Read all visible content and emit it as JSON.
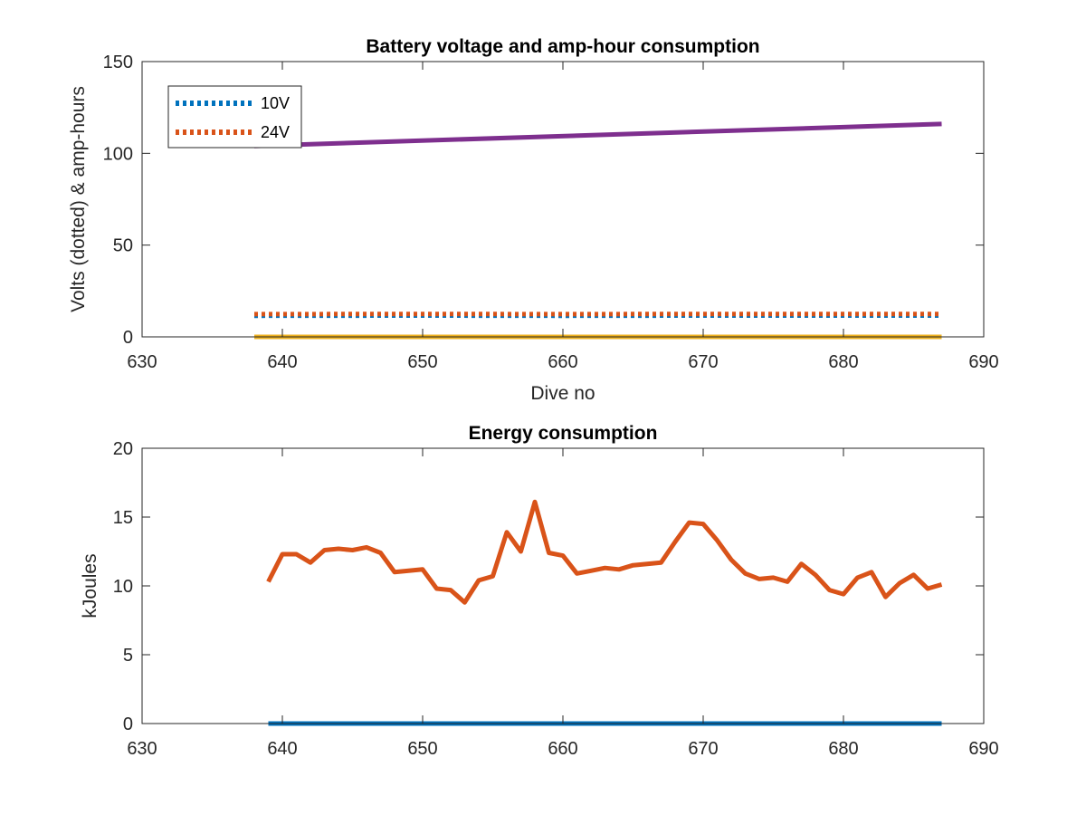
{
  "chart_data": [
    {
      "type": "line",
      "title": "Battery voltage and amp-hour consumption",
      "xlabel": "Dive no",
      "ylabel": "Volts (dotted) & amp-hours",
      "xlim": [
        630,
        690
      ],
      "ylim": [
        0,
        150
      ],
      "xticks": [
        630,
        640,
        650,
        660,
        670,
        680,
        690
      ],
      "yticks": [
        0,
        50,
        100,
        150
      ],
      "grid": false,
      "legend_position": "top-left",
      "series": [
        {
          "name": "10V",
          "color": "#0072BD",
          "style": "dotted",
          "x": [
            638,
            650,
            660,
            670,
            687
          ],
          "y": [
            11.5,
            11.6,
            11.5,
            11.6,
            11.6
          ]
        },
        {
          "name": "24V",
          "color": "#D95319",
          "style": "dotted",
          "x": [
            638,
            650,
            660,
            670,
            687
          ],
          "y": [
            12.4,
            12.5,
            12.4,
            12.5,
            12.5
          ]
        },
        {
          "color": "#EDB120",
          "style": "solid",
          "x": [
            638,
            687
          ],
          "y": [
            0,
            0
          ]
        },
        {
          "color": "#7E2F8E",
          "style": "solid",
          "x": [
            638,
            687
          ],
          "y": [
            104,
            116
          ]
        }
      ]
    },
    {
      "type": "line",
      "title": "Energy consumption",
      "xlabel": "",
      "ylabel": "kJoules",
      "xlim": [
        630,
        690
      ],
      "ylim": [
        0,
        20
      ],
      "xticks": [
        630,
        640,
        650,
        660,
        670,
        680,
        690
      ],
      "yticks": [
        0,
        5,
        10,
        15,
        20
      ],
      "grid": false,
      "series": [
        {
          "color": "#0072BD",
          "style": "solid",
          "x": [
            639,
            687
          ],
          "y": [
            0,
            0
          ]
        },
        {
          "color": "#D95319",
          "style": "solid",
          "x": [
            639,
            640,
            641,
            642,
            643,
            644,
            645,
            646,
            647,
            648,
            649,
            650,
            651,
            652,
            653,
            654,
            655,
            656,
            657,
            658,
            659,
            660,
            661,
            662,
            663,
            664,
            665,
            666,
            667,
            668,
            669,
            670,
            671,
            672,
            673,
            674,
            675,
            676,
            677,
            678,
            679,
            680,
            681,
            682,
            683,
            684,
            685,
            686,
            687
          ],
          "y": [
            10.3,
            12.3,
            12.3,
            11.7,
            12.6,
            12.7,
            12.6,
            12.8,
            12.4,
            11.0,
            11.1,
            11.2,
            9.8,
            9.7,
            8.8,
            10.4,
            10.7,
            13.9,
            12.5,
            16.1,
            12.4,
            12.2,
            10.9,
            11.1,
            11.3,
            11.2,
            11.5,
            11.6,
            11.7,
            13.2,
            14.6,
            14.5,
            13.3,
            11.9,
            10.9,
            10.5,
            10.6,
            10.3,
            11.6,
            10.8,
            9.7,
            9.4,
            10.6,
            11.0,
            9.2,
            10.2,
            10.8,
            9.8,
            10.1
          ]
        }
      ]
    }
  ]
}
